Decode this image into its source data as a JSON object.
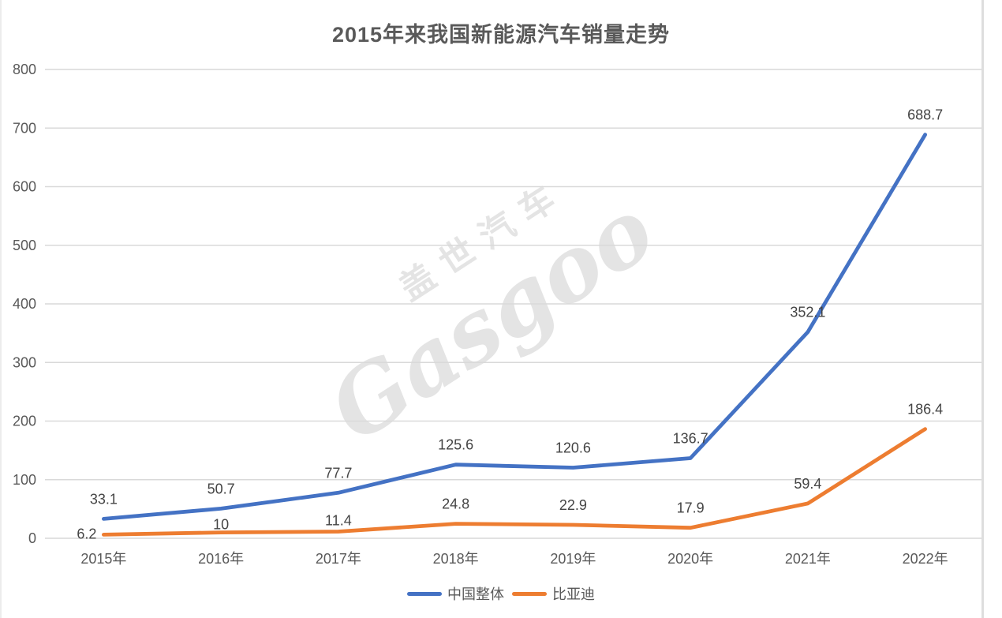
{
  "chart_data": {
    "type": "line",
    "title": "2015年来我国新能源汽车销量走势",
    "categories": [
      "2015年",
      "2016年",
      "2017年",
      "2018年",
      "2019年",
      "2020年",
      "2021年",
      "2022年"
    ],
    "series": [
      {
        "name": "中国整体",
        "color": "#4472C4",
        "values": [
          33.1,
          50.7,
          77.7,
          125.6,
          120.6,
          136.7,
          352.1,
          688.7
        ]
      },
      {
        "name": "比亚迪",
        "color": "#ED7D31",
        "values": [
          6.2,
          10,
          11.4,
          24.8,
          22.9,
          17.9,
          59.4,
          186.4
        ]
      }
    ],
    "xlabel": "",
    "ylabel": "",
    "ylim": [
      0,
      800
    ],
    "yticks": [
      0,
      100,
      200,
      300,
      400,
      500,
      600,
      700,
      800
    ],
    "grid": true,
    "legend_position": "bottom",
    "watermark": {
      "line1": "盖世汽车",
      "line2": "Gasgoo"
    },
    "colors": {
      "title": "#595959",
      "tick_label": "#595959",
      "data_label": "#444444",
      "legend_label": "#595959",
      "grid": "#d9d9d9",
      "watermark": "#e4e4e4"
    }
  }
}
